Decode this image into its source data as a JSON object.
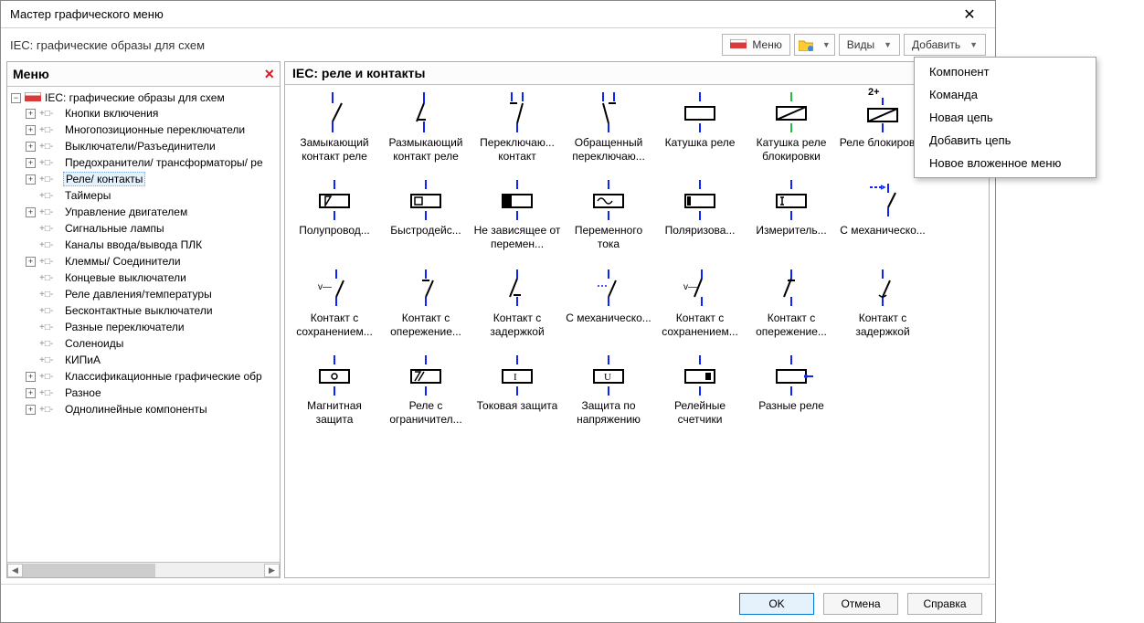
{
  "window": {
    "title": "Мастер графического меню"
  },
  "subheader": {
    "label": "IEC: графические образы для схем"
  },
  "toolbar": {
    "menu": "Меню",
    "views": "Виды",
    "add": "Добавить"
  },
  "tree": {
    "header": "Меню",
    "root": "IEC: графические образы для схем",
    "items": [
      {
        "label": "Кнопки включения",
        "exp": "+"
      },
      {
        "label": "Многопозиционные переключатели",
        "exp": "+"
      },
      {
        "label": "Выключатели/Разъединители",
        "exp": "+"
      },
      {
        "label": "Предохранители/ трансформаторы/ ре",
        "exp": "+"
      },
      {
        "label": "Реле/ контакты",
        "exp": "+",
        "selected": true
      },
      {
        "label": "Таймеры",
        "exp": ""
      },
      {
        "label": "Управление двигателем",
        "exp": "+"
      },
      {
        "label": "Сигнальные лампы",
        "exp": ""
      },
      {
        "label": "Каналы ввода/вывода ПЛК",
        "exp": ""
      },
      {
        "label": "Клеммы/ Соединители",
        "exp": "+"
      },
      {
        "label": "Концевые выключатели",
        "exp": ""
      },
      {
        "label": "Реле давления/температуры",
        "exp": ""
      },
      {
        "label": "Бесконтактные выключатели",
        "exp": ""
      },
      {
        "label": "Разные переключатели",
        "exp": ""
      },
      {
        "label": "Соленоиды",
        "exp": ""
      },
      {
        "label": "КИПиА",
        "exp": ""
      },
      {
        "label": "Классификационные графические обр",
        "exp": "+"
      },
      {
        "label": "Разное",
        "exp": "+"
      },
      {
        "label": "Однолинейные компоненты",
        "exp": "+"
      }
    ]
  },
  "gallery": {
    "title": "IEC: реле и контакты",
    "row1": [
      {
        "label": "Замыкающий контакт реле",
        "svg": "no"
      },
      {
        "label": "Размыкающий контакт реле",
        "svg": "nc"
      },
      {
        "label": "Переключаю... контакт",
        "svg": "co"
      },
      {
        "label": "Обращенный переключаю...",
        "svg": "co2"
      },
      {
        "label": "Катушка реле",
        "svg": "coil"
      },
      {
        "label": "Катушка реле блокировки",
        "svg": "coil_lock"
      },
      {
        "label": "Реле блокировки",
        "svg": "coil_2plus",
        "badge": "2+"
      }
    ],
    "row2": [
      {
        "label": "Полупровод...",
        "svg": "box_tri"
      },
      {
        "label": "Быстродейс...",
        "svg": "box_flag"
      },
      {
        "label": "Не зависящее от перемен...",
        "svg": "box_black"
      },
      {
        "label": "Переменного тока",
        "svg": "box_wave"
      },
      {
        "label": "Поляризова...",
        "svg": "box_stripe"
      },
      {
        "label": "Измеритель...",
        "svg": "box_i"
      },
      {
        "label": "С механическо...",
        "svg": "mech"
      }
    ],
    "row3": [
      {
        "label": "Контакт с сохранением...",
        "svg": "vcv"
      },
      {
        "label": "Контакт с опережение...",
        "svg": "kno"
      },
      {
        "label": "Контакт с задержкой",
        "svg": "knc"
      },
      {
        "label": "С механическо...",
        "svg": "kmech"
      },
      {
        "label": "Контакт с сохранением...",
        "svg": "vcv2"
      },
      {
        "label": "Контакт с опережение...",
        "svg": "kno2"
      },
      {
        "label": "Контакт с задержкой",
        "svg": "knc2"
      }
    ],
    "row4": [
      {
        "label": "Магнитная защита",
        "svg": "box_mag"
      },
      {
        "label": "Реле с ограничител...",
        "svg": "box_limit"
      },
      {
        "label": "Токовая защита",
        "svg": "box_I"
      },
      {
        "label": "Защита по напряжению",
        "svg": "box_U"
      },
      {
        "label": "Релейные счетчики",
        "svg": "box_cnt"
      },
      {
        "label": "Разные реле",
        "svg": "box_misc"
      }
    ]
  },
  "dropdown": {
    "items": [
      "Компонент",
      "Команда",
      "Новая цепь",
      "Добавить цепь",
      "Новое вложенное меню"
    ]
  },
  "footer": {
    "ok": "OK",
    "cancel": "Отмена",
    "help": "Справка"
  },
  "colors": {
    "blue": "#0b24fb",
    "green": "#1fbf3f"
  }
}
